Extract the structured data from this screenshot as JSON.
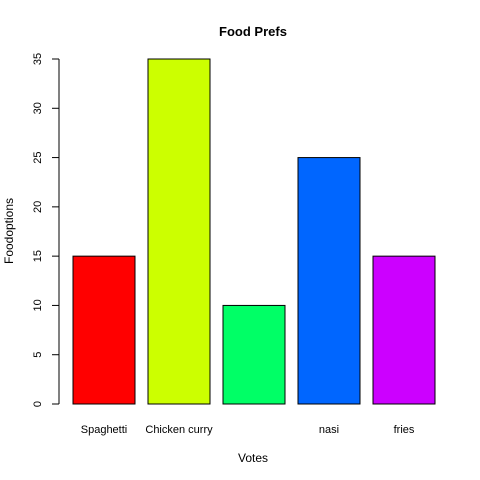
{
  "chart_data": {
    "type": "bar",
    "title": "Food Prefs",
    "xlabel": "Votes",
    "ylabel": "Foodoptions",
    "categories": [
      "Spaghetti",
      "Chicken curry",
      "",
      "nasi",
      "fries"
    ],
    "values": [
      15,
      35,
      10,
      25,
      15
    ],
    "colors": [
      "#FF0000",
      "#CCFF00",
      "#00FF66",
      "#0066FF",
      "#CC00FF"
    ],
    "ylim": [
      0,
      35
    ],
    "yticks": [
      0,
      5,
      10,
      15,
      20,
      25,
      30,
      35
    ],
    "grid": false,
    "legend": "none"
  }
}
